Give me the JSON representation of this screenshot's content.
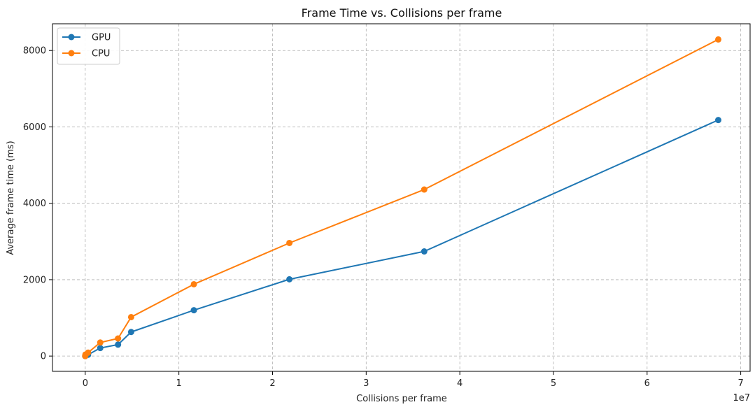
{
  "chart_data": {
    "type": "line",
    "title": "Frame Time vs. Collisions per frame",
    "xlabel": "Collisions per frame",
    "ylabel": "Average frame time (ms)",
    "x_offset_text": "1e7",
    "xlim": [
      -0.35,
      7.1
    ],
    "ylim": [
      -400,
      8700
    ],
    "x_ticks": [
      0,
      1,
      2,
      3,
      4,
      5,
      6,
      7
    ],
    "y_ticks": [
      0,
      2000,
      4000,
      6000,
      8000
    ],
    "grid": true,
    "legend_position": "upper-left",
    "series": [
      {
        "name": "GPU",
        "color": "#1f77b4",
        "marker": "circle",
        "x": [
          0.0,
          0.002,
          0.03,
          0.16,
          0.35,
          0.49,
          1.16,
          2.18,
          3.62,
          6.76
        ],
        "y": [
          0,
          15,
          35,
          210,
          300,
          630,
          1200,
          2010,
          2740,
          6180
        ]
      },
      {
        "name": "CPU",
        "color": "#ff7f0e",
        "marker": "circle",
        "x": [
          0.0,
          0.002,
          0.03,
          0.16,
          0.35,
          0.49,
          1.16,
          2.18,
          3.62,
          6.76
        ],
        "y": [
          0,
          40,
          90,
          355,
          460,
          1020,
          1880,
          2960,
          4360,
          8290
        ]
      }
    ]
  }
}
